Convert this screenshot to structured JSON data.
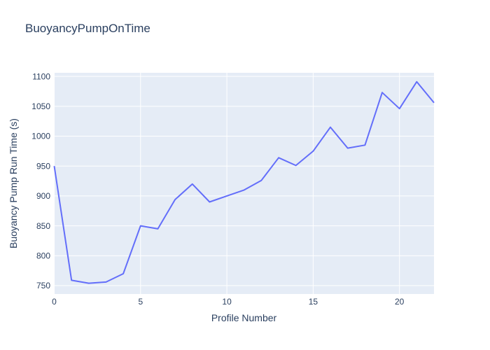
{
  "chart_data": {
    "type": "line",
    "title": "BuoyancyPumpOnTime",
    "xlabel": "Profile Number",
    "ylabel": "Buoyancy Pump Run Time (s)",
    "x": [
      0,
      1,
      2,
      3,
      4,
      5,
      6,
      7,
      8,
      9,
      10,
      11,
      12,
      13,
      14,
      15,
      16,
      17,
      18,
      19,
      20,
      21,
      22
    ],
    "y": [
      950,
      759,
      754,
      756,
      770,
      850,
      845,
      894,
      920,
      890,
      900,
      910,
      926,
      964,
      951,
      975,
      1015,
      980,
      985,
      1073,
      1046,
      1091,
      1056
    ],
    "xticks": [
      0,
      5,
      10,
      15,
      20
    ],
    "yticks": [
      750,
      800,
      850,
      900,
      950,
      1000,
      1050,
      1100
    ],
    "xlim": [
      0,
      22
    ],
    "ylim": [
      736,
      1106
    ],
    "grid": true,
    "legend": "none",
    "colors": {
      "line": "#636efa",
      "plot_background": "#e5ecf6",
      "grid": "#ffffff",
      "text": "#2a3f5f",
      "paper_background": "#ffffff"
    }
  }
}
